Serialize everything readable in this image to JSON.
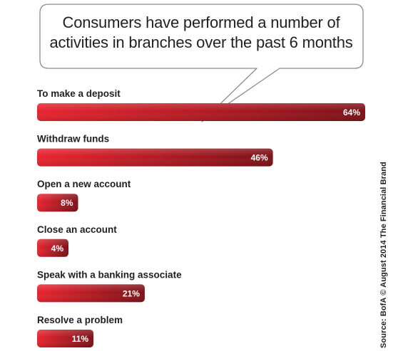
{
  "chart_data": {
    "type": "bar",
    "orientation": "horizontal",
    "title": "Consumers have performed a number of activities in branches over the past 6 months",
    "categories": [
      "To make a deposit",
      "Withdraw funds",
      "Open a new account",
      "Close an account",
      "Speak with a banking associate",
      "Resolve a problem"
    ],
    "values": [
      64,
      46,
      8,
      4,
      21,
      11
    ],
    "value_labels": [
      "64%",
      "46%",
      "8%",
      "4%",
      "21%",
      "11%"
    ],
    "unit": "%",
    "xlim": [
      0,
      64
    ],
    "grid": false,
    "legend": "none",
    "bar_color_start": "#e8242f",
    "bar_color_end": "#7d1218"
  },
  "source": "Source: BofA © August 2014 The Financial Brand"
}
